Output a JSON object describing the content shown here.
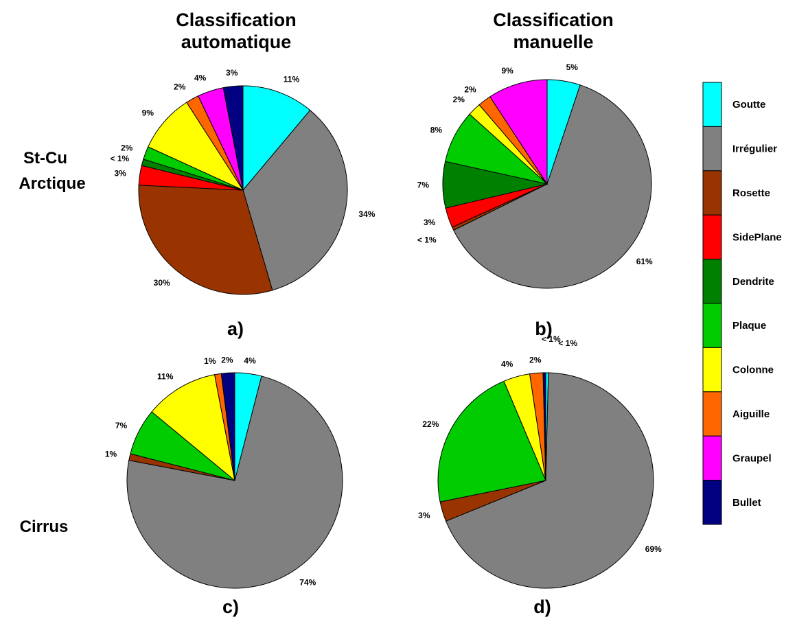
{
  "column_titles": [
    [
      "Classification",
      "automatique"
    ],
    [
      "Classification",
      "manuelle"
    ]
  ],
  "row_labels": [
    [
      "St-Cu",
      "Arctique"
    ],
    [
      "Cirrus"
    ]
  ],
  "legend": {
    "items": [
      {
        "label": "Goutte",
        "color": "#00ffff"
      },
      {
        "label": "Irrégulier",
        "color": "#808080"
      },
      {
        "label": "Rosette",
        "color": "#993300"
      },
      {
        "label": "SidePlane",
        "color": "#ff0000"
      },
      {
        "label": "Dendrite",
        "color": "#008000"
      },
      {
        "label": "Plaque",
        "color": "#00cc00"
      },
      {
        "label": "Colonne",
        "color": "#ffff00"
      },
      {
        "label": "Aiguille",
        "color": "#ff6600"
      },
      {
        "label": "Graupel",
        "color": "#ff00ff"
      },
      {
        "label": "Bullet",
        "color": "#000080"
      }
    ]
  },
  "chart_data": [
    {
      "type": "pie",
      "panel": "a)",
      "slices": [
        {
          "category": "Goutte",
          "value": 11,
          "label": "11%"
        },
        {
          "category": "Irrégulier",
          "value": 34,
          "label": "34%"
        },
        {
          "category": "Rosette",
          "value": 30,
          "label": "30%"
        },
        {
          "category": "SidePlane",
          "value": 3,
          "label": "3%"
        },
        {
          "category": "Dendrite",
          "value": 1,
          "label": "< 1%"
        },
        {
          "category": "Plaque",
          "value": 2,
          "label": "2%"
        },
        {
          "category": "Colonne",
          "value": 9,
          "label": "9%"
        },
        {
          "category": "Aiguille",
          "value": 2,
          "label": "2%"
        },
        {
          "category": "Graupel",
          "value": 4,
          "label": "4%"
        },
        {
          "category": "Bullet",
          "value": 3,
          "label": "3%"
        }
      ]
    },
    {
      "type": "pie",
      "panel": "b)",
      "slices": [
        {
          "category": "Goutte",
          "value": 5,
          "label": "5%"
        },
        {
          "category": "Irrégulier",
          "value": 61,
          "label": "61%"
        },
        {
          "category": "Rosette",
          "value": 0.5,
          "label": "< 1%"
        },
        {
          "category": "SidePlane",
          "value": 3,
          "label": "3%"
        },
        {
          "category": "Dendrite",
          "value": 7,
          "label": "7%"
        },
        {
          "category": "Plaque",
          "value": 8,
          "label": "8%"
        },
        {
          "category": "Colonne",
          "value": 2,
          "label": "2%"
        },
        {
          "category": "Aiguille",
          "value": 2,
          "label": "2%"
        },
        {
          "category": "Graupel",
          "value": 9,
          "label": "9%"
        }
      ]
    },
    {
      "type": "pie",
      "panel": "c)",
      "slices": [
        {
          "category": "Goutte",
          "value": 4,
          "label": "4%"
        },
        {
          "category": "Irrégulier",
          "value": 74,
          "label": "74%"
        },
        {
          "category": "Rosette",
          "value": 1,
          "label": "1%"
        },
        {
          "category": "Plaque",
          "value": 7,
          "label": "7%"
        },
        {
          "category": "Colonne",
          "value": 11,
          "label": "11%"
        },
        {
          "category": "Aiguille",
          "value": 1,
          "label": "1%"
        },
        {
          "category": "Bullet",
          "value": 2,
          "label": "2%"
        }
      ]
    },
    {
      "type": "pie",
      "panel": "d)",
      "slices": [
        {
          "category": "Goutte",
          "value": 0.4,
          "label": "< 1%"
        },
        {
          "category": "Irrégulier",
          "value": 69,
          "label": "69%"
        },
        {
          "category": "Rosette",
          "value": 3,
          "label": "3%"
        },
        {
          "category": "Plaque",
          "value": 22,
          "label": "22%"
        },
        {
          "category": "Colonne",
          "value": 4,
          "label": "4%"
        },
        {
          "category": "Aiguille",
          "value": 2,
          "label": "2%"
        },
        {
          "category": "Bullet",
          "value": 0.4,
          "label": "< 1%"
        }
      ]
    }
  ]
}
